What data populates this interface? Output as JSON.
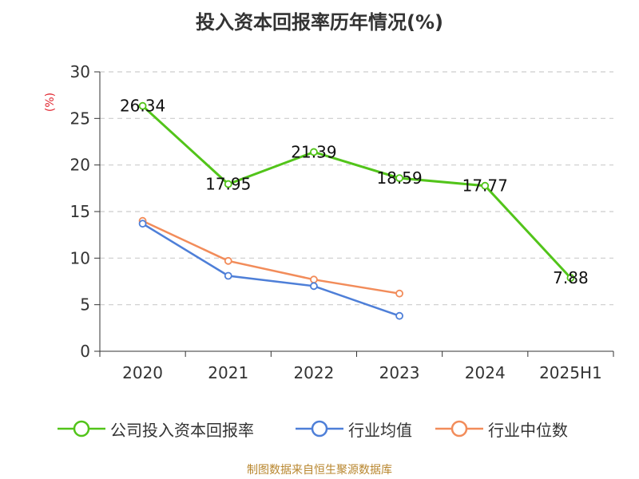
{
  "chart_data": {
    "type": "line",
    "title": "投入资本回报率历年情况(%)",
    "ylabel": "(%)",
    "xlabel": "",
    "categories": [
      "2020",
      "2021",
      "2022",
      "2023",
      "2024",
      "2025H1"
    ],
    "ylim": [
      0,
      30
    ],
    "yticks": [
      0,
      5,
      10,
      15,
      20,
      25,
      30
    ],
    "grid": true,
    "legend_position": "bottom",
    "series": [
      {
        "name": "公司投入资本回报率",
        "color": "#52c41a",
        "values": [
          26.34,
          17.95,
          21.39,
          18.59,
          17.77,
          7.88
        ],
        "labels": [
          "26.34",
          "17.95",
          "21.39",
          "18.59",
          "17.77",
          "7.88"
        ]
      },
      {
        "name": "行业均值",
        "color": "#4e7fd8",
        "values": [
          13.7,
          8.1,
          7.0,
          3.8,
          null,
          null
        ]
      },
      {
        "name": "行业中位数",
        "color": "#f28c5a",
        "values": [
          14.0,
          9.7,
          7.7,
          6.2,
          null,
          null
        ]
      }
    ]
  },
  "source": "制图数据来自恒生聚源数据库"
}
